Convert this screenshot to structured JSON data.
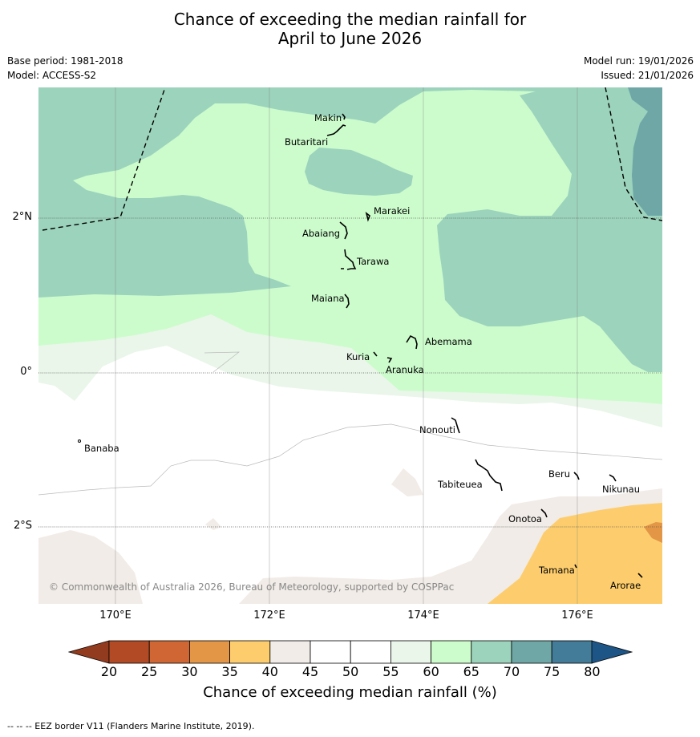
{
  "title": {
    "line1": "Chance of exceeding the median rainfall for",
    "line2": "April to June 2026"
  },
  "meta_left": {
    "base_period": "Base period: 1981-2018",
    "model": "Model: ACCESS-S2"
  },
  "meta_right": {
    "model_run": "Model run: 19/01/2026",
    "issued": "Issued: 21/01/2026"
  },
  "axes": {
    "lat_ticks": [
      "2°N",
      "0°",
      "2°S"
    ],
    "lon_ticks": [
      "170°E",
      "172°E",
      "174°E",
      "176°E"
    ]
  },
  "places": [
    "Makin",
    "Butaritari",
    "Marakei",
    "Abaiang",
    "Tarawa",
    "Maiana",
    "Abemama",
    "Kuria",
    "Aranuka",
    "Banaba",
    "Nonouti",
    "Tabiteuea",
    "Beru",
    "Nikunau",
    "Onotoa",
    "Tamana",
    "Arorae"
  ],
  "copyright": "© Commonwealth of Australia 2026, Bureau of Meteorology, supported by COSPPac",
  "colorbar": {
    "ticks": [
      "20",
      "25",
      "30",
      "35",
      "40",
      "45",
      "50",
      "55",
      "60",
      "65",
      "70",
      "75",
      "80"
    ],
    "colors": [
      "#b24a26",
      "#cf6633",
      "#e29646",
      "#fdcd6d",
      "#f1ece7",
      "#ffffff",
      "#ffffff",
      "#eaf6ea",
      "#ccfccc",
      "#9cd3bc",
      "#6fa7a7",
      "#427c99"
    ],
    "under_color": "#933b1e",
    "over_color": "#1d5586",
    "label": "Chance of exceeding median rainfall (%)"
  },
  "footer": "--  --  -- EEZ border V11 (Flanders Marine Institute, 2019)."
}
